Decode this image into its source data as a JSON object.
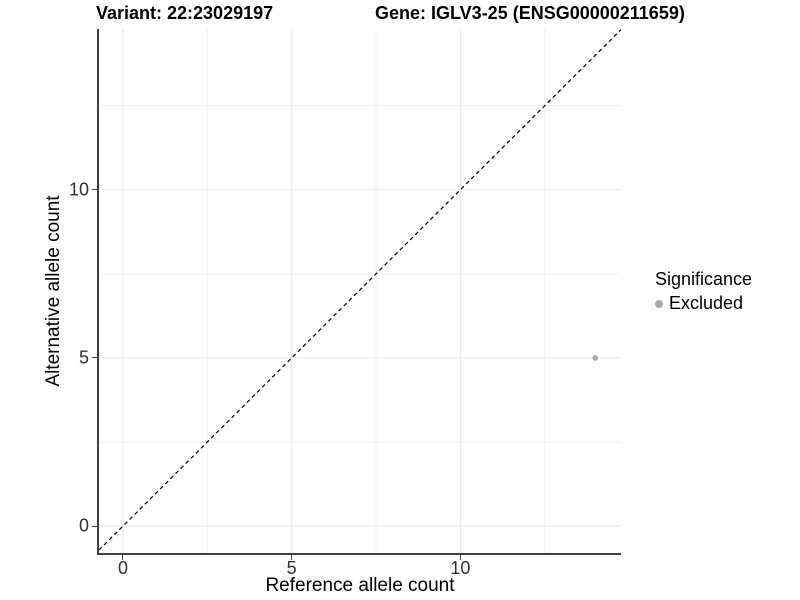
{
  "chart_data": {
    "type": "scatter",
    "titles": [
      "Variant: 22:23029197",
      "Gene: IGLV3-25 (ENSG00000211659)"
    ],
    "xlabel": "Reference allele count",
    "ylabel": "Alternative allele count",
    "xlim": [
      -0.71,
      14.76
    ],
    "ylim": [
      -0.8,
      14.78
    ],
    "x_ticks": [
      0,
      5,
      10
    ],
    "y_ticks": [
      0,
      5,
      10
    ],
    "x_minor_ticks": [
      2.5,
      7.5,
      12.5
    ],
    "y_minor_ticks": [
      2.5,
      7.5,
      12.5
    ],
    "grid": true,
    "points": [
      {
        "x": 14,
        "y": 5,
        "significance": "Excluded"
      }
    ],
    "identity_line": {
      "type": "dashed",
      "slope": 1,
      "intercept": 0,
      "color": "#000000"
    },
    "legend": {
      "position": "right",
      "title": "Significance",
      "entries": [
        {
          "label": "Excluded",
          "color": "#a8a8a8"
        }
      ]
    },
    "colors": {
      "point_excluded": "#a8a8a8",
      "grid_major": "#e7e7e7",
      "grid_minor": "#f1f1f1",
      "axis_line": "#404040",
      "tick_text": "#333333",
      "background": "#ffffff"
    },
    "point_radius_px": 2.8
  }
}
